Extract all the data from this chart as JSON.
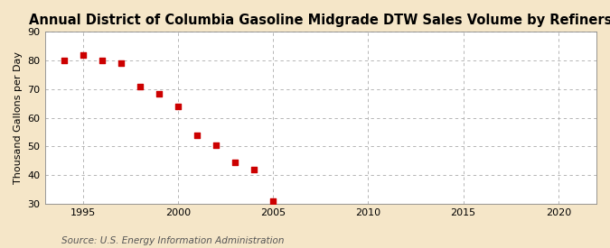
{
  "title": "Annual District of Columbia Gasoline Midgrade DTW Sales Volume by Refiners",
  "ylabel": "Thousand Gallons per Day",
  "source": "Source: U.S. Energy Information Administration",
  "figure_bg_color": "#f5e6c8",
  "plot_bg_color": "#ffffff",
  "x_values": [
    1994,
    1995,
    1996,
    1997,
    1998,
    1999,
    2000,
    2001,
    2002,
    2003,
    2004,
    2005
  ],
  "y_values": [
    80.0,
    82.0,
    80.0,
    79.0,
    71.0,
    68.5,
    64.0,
    54.0,
    50.5,
    44.5,
    42.0,
    31.0
  ],
  "marker_color": "#cc0000",
  "marker": "s",
  "marker_size": 5,
  "xlim": [
    1993,
    2022
  ],
  "ylim": [
    30,
    90
  ],
  "yticks": [
    30,
    40,
    50,
    60,
    70,
    80,
    90
  ],
  "xticks": [
    1995,
    2000,
    2005,
    2010,
    2015,
    2020
  ],
  "grid_color": "#aaaaaa",
  "grid_style": "--",
  "title_fontsize": 10.5,
  "label_fontsize": 8,
  "tick_fontsize": 8,
  "source_fontsize": 7.5
}
